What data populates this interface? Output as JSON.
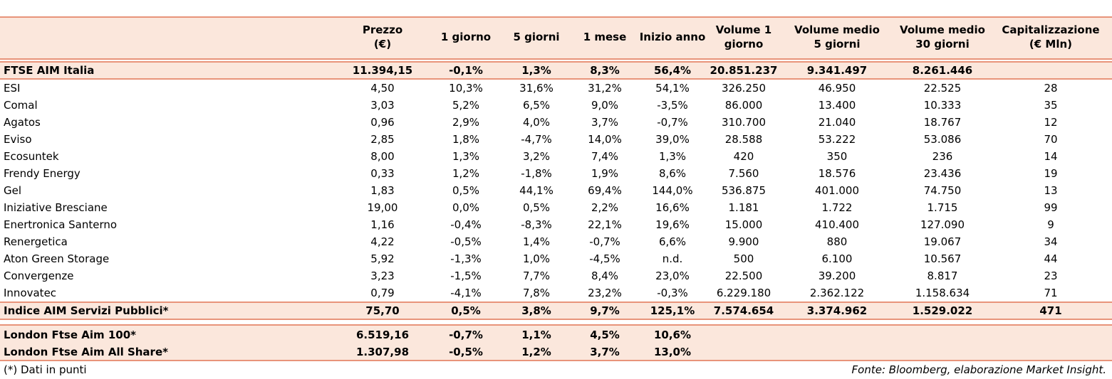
{
  "columns": [
    {
      "line1": "Prezzo",
      "line2": "(€)"
    },
    {
      "line1": "1 giorno",
      "line2": ""
    },
    {
      "line1": "5 giorni",
      "line2": ""
    },
    {
      "line1": "1 mese",
      "line2": ""
    },
    {
      "line1": "Inizio anno",
      "line2": ""
    },
    {
      "line1": "Volume 1",
      "line2": "giorno"
    },
    {
      "line1": "Volume medio",
      "line2": "5 giorni"
    },
    {
      "line1": "Volume medio",
      "line2": "30 giorni"
    },
    {
      "line1": "Capitalizzazione",
      "line2": "(€ Mln)"
    }
  ],
  "index_row": {
    "name": "FTSE AIM Italia",
    "values": [
      "11.394,15",
      "-0,1%",
      "1,3%",
      "8,3%",
      "56,4%",
      "20.851.237",
      "9.341.497",
      "8.261.446",
      ""
    ]
  },
  "rows": [
    {
      "name": "ESI",
      "values": [
        "4,50",
        "10,3%",
        "31,6%",
        "31,2%",
        "54,1%",
        "326.250",
        "46.950",
        "22.525",
        "28"
      ]
    },
    {
      "name": "Comal",
      "values": [
        "3,03",
        "5,2%",
        "6,5%",
        "9,0%",
        "-3,5%",
        "86.000",
        "13.400",
        "10.333",
        "35"
      ]
    },
    {
      "name": "Agatos",
      "values": [
        "0,96",
        "2,9%",
        "4,0%",
        "3,7%",
        "-0,7%",
        "310.700",
        "21.040",
        "18.767",
        "12"
      ]
    },
    {
      "name": "Eviso",
      "values": [
        "2,85",
        "1,8%",
        "-4,7%",
        "14,0%",
        "39,0%",
        "28.588",
        "53.222",
        "53.086",
        "70"
      ]
    },
    {
      "name": "Ecosuntek",
      "values": [
        "8,00",
        "1,3%",
        "3,2%",
        "7,4%",
        "1,3%",
        "420",
        "350",
        "236",
        "14"
      ]
    },
    {
      "name": "Frendy Energy",
      "values": [
        "0,33",
        "1,2%",
        "-1,8%",
        "1,9%",
        "8,6%",
        "7.560",
        "18.576",
        "23.436",
        "19"
      ]
    },
    {
      "name": "Gel",
      "values": [
        "1,83",
        "0,5%",
        "44,1%",
        "69,4%",
        "144,0%",
        "536.875",
        "401.000",
        "74.750",
        "13"
      ]
    },
    {
      "name": "Iniziative Bresciane",
      "values": [
        "19,00",
        "0,0%",
        "0,5%",
        "2,2%",
        "16,6%",
        "1.181",
        "1.722",
        "1.715",
        "99"
      ]
    },
    {
      "name": "Enertronica Santerno",
      "values": [
        "1,16",
        "-0,4%",
        "-8,3%",
        "22,1%",
        "19,6%",
        "15.000",
        "410.400",
        "127.090",
        "9"
      ]
    },
    {
      "name": "Renergetica",
      "values": [
        "4,22",
        "-0,5%",
        "1,4%",
        "-0,7%",
        "6,6%",
        "9.900",
        "880",
        "19.067",
        "34"
      ]
    },
    {
      "name": "Aton Green Storage",
      "values": [
        "5,92",
        "-1,3%",
        "1,0%",
        "-4,5%",
        "n.d.",
        "500",
        "6.100",
        "10.567",
        "44"
      ]
    },
    {
      "name": "Convergenze",
      "values": [
        "3,23",
        "-1,5%",
        "7,7%",
        "8,4%",
        "23,0%",
        "22.500",
        "39.200",
        "8.817",
        "23"
      ]
    },
    {
      "name": "Innovatec",
      "values": [
        "0,79",
        "-4,1%",
        "7,8%",
        "23,2%",
        "-0,3%",
        "6.229.180",
        "2.362.122",
        "1.158.634",
        "71"
      ]
    }
  ],
  "sector_row": {
    "name": "Indice AIM Servizi Pubblici*",
    "values": [
      "75,70",
      "0,5%",
      "3,8%",
      "9,7%",
      "125,1%",
      "7.574.654",
      "3.374.962",
      "1.529.022",
      "471"
    ]
  },
  "london_rows": [
    {
      "name": "London Ftse Aim 100*",
      "values": [
        "6.519,16",
        "-0,7%",
        "1,1%",
        "4,5%",
        "10,6%",
        "",
        "",
        "",
        ""
      ]
    },
    {
      "name": "London Ftse Aim All Share*",
      "values": [
        "1.307,98",
        "-0,5%",
        "1,2%",
        "3,7%",
        "13,0%",
        "",
        "",
        "",
        ""
      ]
    }
  ],
  "footnote": "(*) Dati in punti",
  "source": "Fonte: Bloomberg, elaborazione Market Insight."
}
